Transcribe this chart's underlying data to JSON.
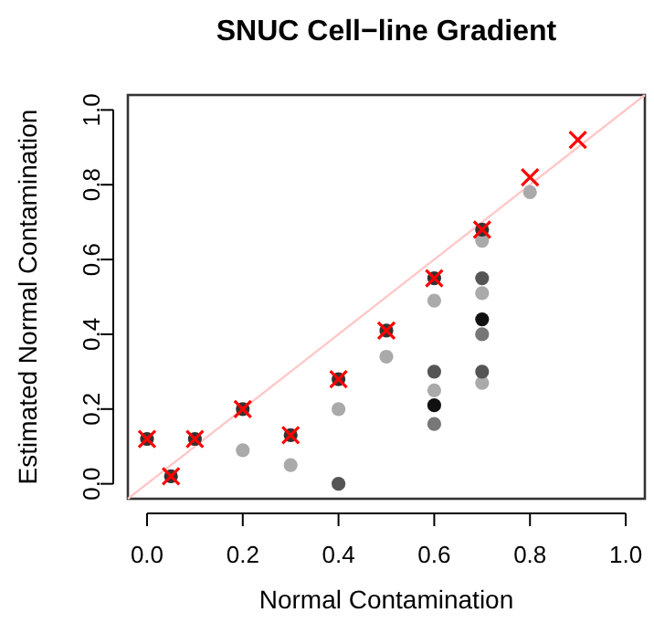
{
  "chart_data": {
    "type": "scatter",
    "title": "SNUC Cell−line Gradient",
    "xlabel": "Normal Contamination",
    "ylabel": "Estimated Normal Contamination",
    "xlim": [
      -0.04,
      1.04
    ],
    "ylim": [
      -0.04,
      1.04
    ],
    "xticks": [
      {
        "value": 0,
        "label": "0.0"
      },
      0.2,
      0.4,
      0.6,
      0.8,
      {
        "value": 1,
        "label": "1.0"
      }
    ],
    "yticks": [
      {
        "value": 0,
        "label": "0.0"
      },
      0.2,
      0.4,
      0.6,
      0.8,
      {
        "value": 1,
        "label": "1.0"
      }
    ],
    "grid": false,
    "series": [
      {
        "type": "line",
        "color": "#ffc8c8",
        "line_style": "solid",
        "marker": "none",
        "x": [
          -0.04,
          1.04
        ],
        "values": [
          -0.04,
          1.04
        ]
      },
      {
        "color": "#aaaaaa",
        "marker": "circle",
        "x": [
          0.2,
          0.3,
          0.4,
          0.5,
          0.6,
          0.6,
          0.7,
          0.7,
          0.7,
          0.8
        ],
        "values": [
          0.09,
          0.05,
          0.2,
          0.34,
          0.49,
          0.25,
          0.65,
          0.51,
          0.27,
          0.78
        ]
      },
      {
        "color": "#777777",
        "marker": "circle",
        "x": [
          0.6,
          0.7
        ],
        "values": [
          0.16,
          0.4
        ]
      },
      {
        "color": "#555555",
        "marker": "circle",
        "x": [
          0.4,
          0.6,
          0.7,
          0.7
        ],
        "values": [
          0.0,
          0.3,
          0.55,
          0.3
        ]
      },
      {
        "color": "#111111",
        "marker": "circle",
        "x": [
          0.6,
          0.7
        ],
        "values": [
          0.21,
          0.44
        ]
      },
      {
        "color": "#333333",
        "marker": "circle",
        "x": [
          0,
          0.05,
          0.1,
          0.2,
          0.3,
          0.4,
          0.5,
          0.6,
          0.7
        ],
        "values": [
          0.12,
          0.02,
          0.12,
          0.2,
          0.13,
          0.28,
          0.41,
          0.55,
          0.68
        ]
      },
      {
        "color": "#ff0000",
        "marker": "cross",
        "x": [
          0,
          0.05,
          0.1,
          0.2,
          0.3,
          0.4,
          0.5,
          0.6,
          0.7,
          0.8,
          0.9
        ],
        "values": [
          0.12,
          0.02,
          0.12,
          0.2,
          0.13,
          0.28,
          0.41,
          0.55,
          0.68,
          0.82,
          0.92
        ]
      }
    ]
  }
}
